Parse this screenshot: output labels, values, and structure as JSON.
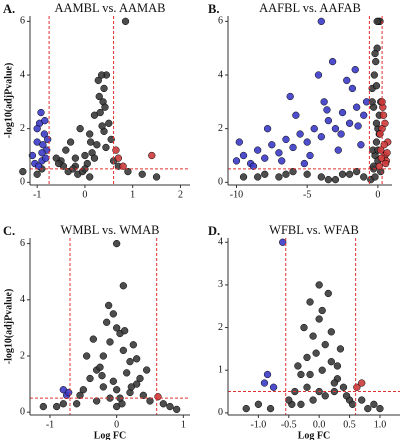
{
  "chart_data": [
    {
      "type": "scatter",
      "panel": "A.",
      "title": "AAMBL vs. AAMAB",
      "ylabel": "-log10(adjPvalue)",
      "xlim": [
        -1.15,
        2.2
      ],
      "ylim": [
        -0.1,
        6.2
      ],
      "xticks": [
        -1,
        0,
        1,
        2
      ],
      "yticks": [
        0,
        2,
        4,
        6
      ],
      "vlines": [
        -0.75,
        0.6
      ],
      "hline": 0.5,
      "threshold_color": "#e03030",
      "series": [
        {
          "color": "#3a3a3a",
          "x": [
            -0.5,
            -0.4,
            -0.3,
            -0.2,
            -0.1,
            0,
            0.1,
            0.2,
            0.3,
            0.4,
            0.5,
            -0.6,
            -0.35,
            -0.15,
            0.05,
            0.25,
            0.45,
            0.35,
            0.38,
            0.42,
            0.85,
            0.15,
            -0.25,
            -0.45,
            0.55,
            0.2,
            0.1,
            -0.05,
            0.32,
            0.4,
            -1.3,
            -1.0,
            -0.9,
            0.7,
            0.9,
            1.2,
            1.5,
            -0.2,
            0.0,
            0.28,
            0.36,
            0.44,
            0.12,
            -0.55,
            0.6
          ],
          "y": [
            0.8,
            1.2,
            1.5,
            0.6,
            2.0,
            1.0,
            1.8,
            2.5,
            3.2,
            3.5,
            2.2,
            0.9,
            0.4,
            0.3,
            0.7,
            1.4,
            4.0,
            4.0,
            3.0,
            2.8,
            6.0,
            1.1,
            0.5,
            0.6,
            1.6,
            0.9,
            0.2,
            0.4,
            2.6,
            1.9,
            0.4,
            0.3,
            0.5,
            0.6,
            0.4,
            0.3,
            0.2,
            0.9,
            0.5,
            3.8,
            2.1,
            1.3,
            1.5,
            0.7,
            0.8
          ]
        },
        {
          "color": "#3b3bc8",
          "x": [
            -1.1,
            -1.0,
            -0.95,
            -0.9,
            -0.85,
            -0.8,
            -1.05,
            -0.92,
            -0.88,
            -0.82,
            -1.0,
            -0.78,
            -0.9,
            -0.97,
            -0.84
          ],
          "y": [
            1.0,
            1.5,
            2.2,
            0.8,
            1.8,
            1.2,
            0.7,
            2.6,
            1.4,
            0.9,
            2.0,
            1.6,
            1.1,
            0.6,
            2.3
          ]
        },
        {
          "color": "#cc3b3b",
          "x": [
            0.7,
            0.8,
            0.65,
            1.4
          ],
          "y": [
            0.9,
            0.6,
            1.2,
            1.0
          ]
        }
      ]
    },
    {
      "type": "scatter",
      "panel": "B.",
      "title": "AAFBL vs. AAFAB",
      "xlim": [
        -10.6,
        1.0
      ],
      "ylim": [
        -0.1,
        6.2
      ],
      "xticks": [
        -10,
        -5,
        0
      ],
      "yticks": [
        0,
        2,
        4,
        6
      ],
      "vlines": [
        -0.6,
        0.3
      ],
      "hline": 0.5,
      "threshold_color": "#e03030",
      "series": [
        {
          "color": "#3a3a3a",
          "x": [
            -0.3,
            -0.2,
            -0.1,
            0,
            0.1,
            0.2,
            -0.4,
            -0.25,
            -0.15,
            -0.05,
            0.05,
            0.15,
            -0.35,
            -0.3,
            -0.1,
            0.0,
            -2,
            -4,
            -6,
            -8,
            -9.5,
            -3,
            -5,
            -7,
            -1.5,
            -0.5,
            -0.2,
            -0.1,
            0.1,
            -0.3,
            -0.4,
            -0.05,
            -2.5,
            -1,
            -3.5,
            -6.5,
            -8.5,
            0.2,
            0.0,
            -0.2
          ],
          "y": [
            0.5,
            1.0,
            1.5,
            2.0,
            2.5,
            3.0,
            3.5,
            4.0,
            4.5,
            5.0,
            6.0,
            6.0,
            1.2,
            2.8,
            3.6,
            0.8,
            0.3,
            0.2,
            0.4,
            0.3,
            0.2,
            0.1,
            0.3,
            0.2,
            0.4,
            0.1,
            0.2,
            2.2,
            1.8,
            0.6,
            3.0,
            6.0,
            0.3,
            0.2,
            0.1,
            0.3,
            0.2,
            0.4,
            1.2,
            4.8
          ]
        },
        {
          "color": "#3b3bc8",
          "x": [
            -10,
            -9.5,
            -9,
            -8.5,
            -8,
            -7.5,
            -7,
            -6.5,
            -6,
            -5.5,
            -5,
            -4.5,
            -4,
            -3.5,
            -3,
            -2.5,
            -2,
            -1.5,
            -1,
            -0.8,
            -9.8,
            -8.8,
            -7.8,
            -6.8,
            -5.8,
            -4.8,
            -3.8,
            -2.8,
            -1.8,
            -1.2,
            -4.2,
            -3.2,
            -2.2,
            -1.6,
            -5.2,
            -6.2,
            -3.6,
            -2.6,
            -1.4,
            -4
          ],
          "y": [
            0.8,
            1.0,
            0.7,
            1.2,
            0.9,
            1.4,
            1.1,
            1.6,
            1.3,
            1.8,
            1.5,
            2.0,
            1.7,
            2.3,
            2.0,
            2.6,
            2.2,
            2.8,
            2.5,
            3.0,
            1.5,
            0.6,
            2.0,
            0.8,
            2.5,
            1.0,
            3.0,
            1.2,
            3.5,
            1.4,
            4.0,
            4.5,
            3.8,
            4.2,
            0.7,
            3.2,
            2.7,
            1.8,
            2.1,
            6.0
          ]
        },
        {
          "color": "#cc3b3b",
          "x": [
            0.1,
            0.2,
            0.3,
            0.4,
            0.5,
            0.6,
            0.7,
            0.15,
            0.25,
            0.35,
            0.45,
            0.55,
            0.65,
            0.3,
            0.5
          ],
          "y": [
            0.6,
            1.2,
            2.0,
            2.5,
            1.0,
            0.8,
            1.5,
            1.8,
            0.9,
            2.8,
            1.4,
            0.7,
            1.1,
            3.0,
            2.2
          ]
        }
      ]
    },
    {
      "type": "scatter",
      "panel": "C.",
      "title": "WMBL vs. WMAB",
      "ylabel": "-log10(adjPvalue)",
      "xlabel": "Log FC",
      "xlim": [
        -1.3,
        1.1
      ],
      "ylim": [
        -0.1,
        6.2
      ],
      "xticks": [
        -1,
        0,
        1
      ],
      "yticks": [
        0,
        2,
        4,
        6
      ],
      "vlines": [
        -0.7,
        0.6
      ],
      "hline": 0.5,
      "threshold_color": "#e03030",
      "series": [
        {
          "color": "#3a3a3a",
          "x": [
            -0.6,
            -0.5,
            -0.4,
            -0.3,
            -0.2,
            -0.1,
            0,
            0.1,
            0.2,
            0.3,
            0.4,
            0.5,
            -0.45,
            -0.35,
            -0.25,
            -0.15,
            -0.05,
            0.05,
            0.15,
            0.25,
            0.35,
            -0.2,
            0.0,
            0.1,
            -0.1,
            0.2,
            -0.3,
            0.3,
            0.0,
            -0.05,
            0.08,
            -0.9,
            0.7,
            0.9,
            -1.1,
            -0.8,
            0.8,
            -0.55,
            0.45,
            0.12,
            -0.12,
            0.22,
            -0.22,
            0.05,
            0.0
          ],
          "y": [
            0.3,
            0.8,
            1.2,
            1.5,
            2.0,
            2.5,
            3.0,
            2.2,
            1.8,
            1.0,
            0.6,
            0.4,
            2.0,
            2.6,
            1.6,
            3.2,
            3.5,
            2.8,
            1.4,
            2.4,
            1.2,
            0.9,
            6.0,
            4.5,
            0.5,
            0.7,
            0.4,
            1.9,
            0.2,
            1.1,
            0.3,
            0.2,
            0.3,
            0.1,
            0.2,
            0.3,
            0.2,
            0.6,
            1.5,
            2.9,
            3.8,
            0.9,
            1.3,
            0.5,
            0.8
          ]
        },
        {
          "color": "#3b3bc8",
          "x": [
            -0.75,
            -0.8,
            -0.72
          ],
          "y": [
            0.6,
            0.8,
            0.7
          ]
        },
        {
          "color": "#cc3b3b",
          "x": [
            0.62
          ],
          "y": [
            0.55
          ]
        }
      ]
    },
    {
      "type": "scatter",
      "panel": "D.",
      "title": "WFBL vs. WFAB",
      "xlabel": "Log FC",
      "xlim": [
        -1.5,
        1.33
      ],
      "ylim": [
        -0.05,
        4.1
      ],
      "xticks": [
        {
          "value": -1,
          "label": "-1.0"
        },
        -0.5,
        {
          "value": 0,
          "label": "0.0"
        },
        0.5,
        {
          "value": 1,
          "label": "1.0"
        }
      ],
      "yticks": [
        0,
        1,
        2,
        3,
        4
      ],
      "vlines": [
        -0.55,
        0.6
      ],
      "hline": 0.5,
      "threshold_color": "#e03030",
      "series": [
        {
          "color": "#3a3a3a",
          "x": [
            -0.4,
            -0.3,
            -0.2,
            -0.1,
            0,
            0.1,
            0.2,
            0.3,
            0.4,
            0.5,
            -0.35,
            -0.25,
            -0.15,
            -0.05,
            0.05,
            0.15,
            0.25,
            0.35,
            0.45,
            -0.45,
            -0.5,
            0.55,
            -0.2,
            0.0,
            0.1,
            0.2,
            -0.1,
            0.3,
            -0.3,
            0.0,
            -0.8,
            -1.0,
            -1.2,
            0.7,
            0.8,
            0.9,
            1.0,
            -0.15,
            0.05,
            0.25
          ],
          "y": [
            0.5,
            0.9,
            1.3,
            1.8,
            2.2,
            1.6,
            1.2,
            0.8,
            0.6,
            0.3,
            1.1,
            2.0,
            2.6,
            1.4,
            1.0,
            2.8,
            0.7,
            1.5,
            0.4,
            0.2,
            0.3,
            0.2,
            0.6,
            3.0,
            0.4,
            1.9,
            0.3,
            1.1,
            0.2,
            0.5,
            0.1,
            0.2,
            0.1,
            0.3,
            0.1,
            0.2,
            0.1,
            0.9,
            2.4,
            0.5
          ]
        },
        {
          "color": "#3b3bc8",
          "x": [
            -0.6,
            -0.9,
            -0.85,
            -0.75
          ],
          "y": [
            4.0,
            0.7,
            0.9,
            0.6
          ]
        },
        {
          "color": "#cc3b3b",
          "x": [
            0.62,
            0.7
          ],
          "y": [
            0.6,
            0.7
          ]
        }
      ]
    }
  ]
}
